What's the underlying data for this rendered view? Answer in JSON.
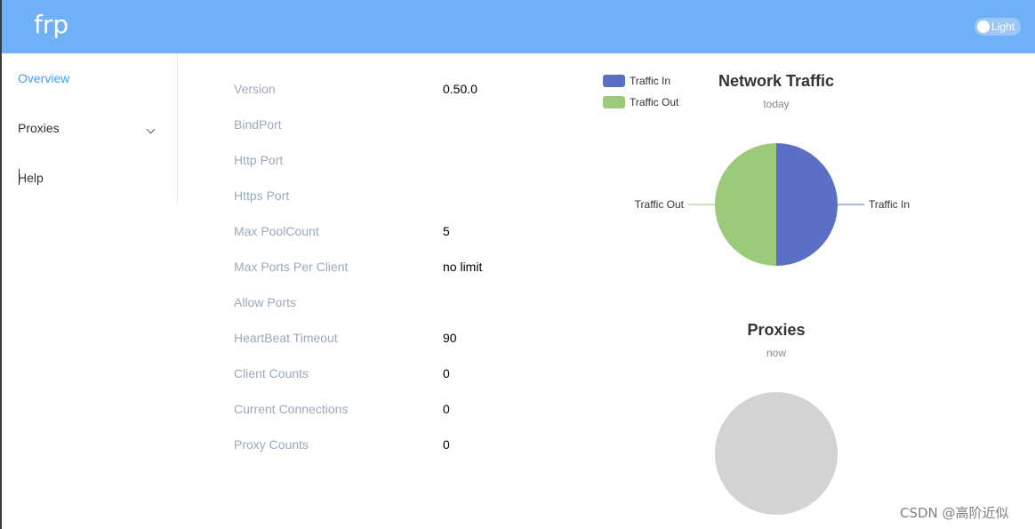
{
  "header": {
    "brand": "frp",
    "theme_toggle_label": "Light"
  },
  "sidebar": {
    "items": [
      {
        "label": "Overview",
        "active": true
      },
      {
        "label": "Proxies",
        "has_submenu": true
      },
      {
        "label": "Help"
      }
    ]
  },
  "server_info": [
    {
      "label": "Version",
      "value": "0.50.0"
    },
    {
      "label": "BindPort",
      "value": ""
    },
    {
      "label": "Http Port",
      "value": ""
    },
    {
      "label": "Https Port",
      "value": ""
    },
    {
      "label": "Max PoolCount",
      "value": "5"
    },
    {
      "label": "Max Ports Per Client",
      "value": "no limit"
    },
    {
      "label": "Allow Ports",
      "value": ""
    },
    {
      "label": "HeartBeat Timeout",
      "value": "90"
    },
    {
      "label": "Client Counts",
      "value": "0"
    },
    {
      "label": "Current Connections",
      "value": "0"
    },
    {
      "label": "Proxy Counts",
      "value": "0"
    }
  ],
  "colors": {
    "header": "#6eb1f7",
    "active_nav": "#409eff",
    "traffic_in": "#5b70c5",
    "traffic_out": "#9aca7a",
    "empty_pie": "#d3d3d3"
  },
  "chart_data": [
    {
      "type": "pie",
      "title": "Network Traffic",
      "subtitle": "today",
      "legend": [
        "Traffic In",
        "Traffic Out"
      ],
      "legend_position": "top-left",
      "categories": [
        "Traffic In",
        "Traffic Out"
      ],
      "values": [
        1,
        1
      ]
    },
    {
      "type": "pie",
      "title": "Proxies",
      "subtitle": "now",
      "categories": [],
      "values": []
    }
  ],
  "watermark": "CSDN @高阶近似"
}
